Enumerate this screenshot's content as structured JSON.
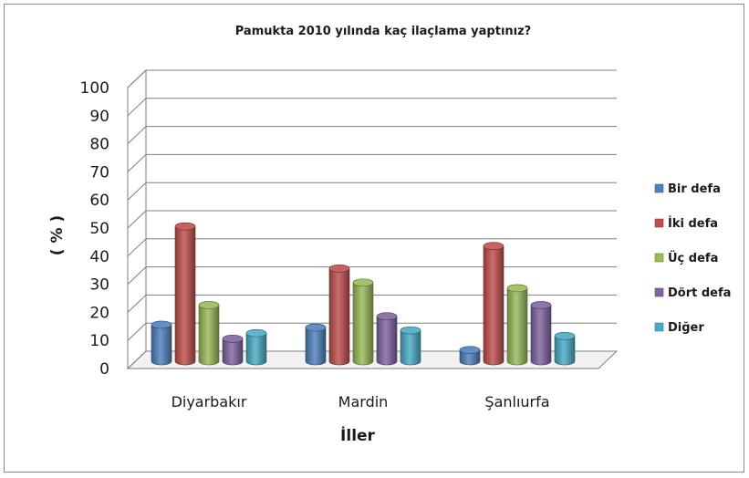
{
  "chart_data": {
    "type": "bar",
    "title": "Pamukta 2010 yılında kaç ilaçlama yaptınız?",
    "xlabel": "İller",
    "ylabel": "( % )",
    "ylim": [
      0,
      100
    ],
    "yticks": [
      0,
      10,
      20,
      30,
      40,
      50,
      60,
      70,
      80,
      90,
      100
    ],
    "categories": [
      "Diyarbakır",
      "Mardin",
      "Şanlıurfa"
    ],
    "series": [
      {
        "name": "Bir defa",
        "color": "#4f81bd",
        "values": [
          13,
          12,
          4
        ]
      },
      {
        "name": "İki defa",
        "color": "#c0504d",
        "values": [
          48,
          33,
          41
        ]
      },
      {
        "name": "Üç defa",
        "color": "#9bbb59",
        "values": [
          20,
          28,
          26
        ]
      },
      {
        "name": "Dört defa",
        "color": "#8064a2",
        "values": [
          8,
          16,
          20
        ]
      },
      {
        "name": "Diğer",
        "color": "#4bacc6",
        "values": [
          10,
          11,
          9
        ]
      }
    ],
    "grid": true,
    "legend": "right"
  }
}
